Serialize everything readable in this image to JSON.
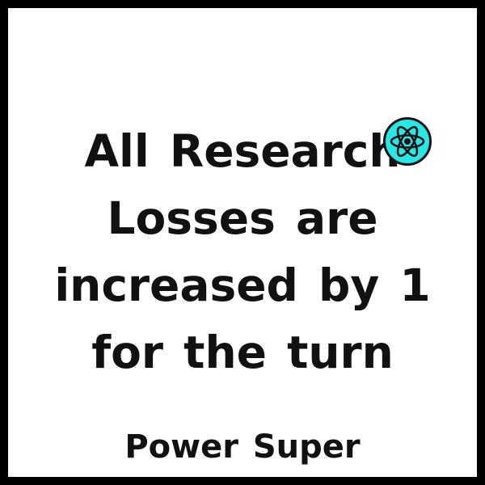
{
  "card": {
    "effect_lines": [
      "All Research",
      "Losses are",
      "increased by 1",
      "for the turn"
    ],
    "icon": "atom-research-icon",
    "icon_color": "#29e6e6",
    "name": "Power Super",
    "border_color": "#000000"
  }
}
